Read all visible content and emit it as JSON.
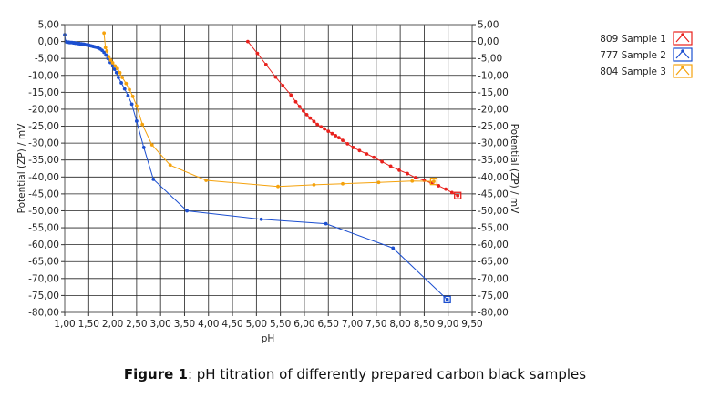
{
  "chart_data": {
    "type": "line",
    "title": "",
    "xlabel": "pH",
    "ylabel": "Potential (ZP) / mV",
    "ylabel_right": "Potential (ZP) / mV",
    "xlim": [
      1.0,
      9.5
    ],
    "ylim": [
      -80,
      5
    ],
    "x_ticks": [
      "1,00",
      "1,50",
      "2,00",
      "2,50",
      "3,00",
      "3,50",
      "4,00",
      "4,50",
      "5,00",
      "5,50",
      "6,00",
      "6,50",
      "7,00",
      "7,50",
      "8,00",
      "8,50",
      "9,00",
      "9,50"
    ],
    "y_ticks": [
      "5,00",
      "0,00",
      "-5,00",
      "-10,00",
      "-15,00",
      "-20,00",
      "-25,00",
      "-30,00",
      "-35,00",
      "-40,00",
      "-45,00",
      "-50,00",
      "-55,00",
      "-60,00",
      "-65,00",
      "-70,00",
      "-75,00",
      "-80,00"
    ],
    "grid": true,
    "legend_position": "top-right",
    "series": [
      {
        "name": "809 Sample 1",
        "color": "#e8201c",
        "points": [
          [
            4.82,
            0.0
          ],
          [
            5.02,
            -3.5
          ],
          [
            5.2,
            -6.8
          ],
          [
            5.4,
            -10.5
          ],
          [
            5.55,
            -13.0
          ],
          [
            5.72,
            -15.8
          ],
          [
            5.82,
            -17.8
          ],
          [
            5.9,
            -19.2
          ],
          [
            5.98,
            -20.5
          ],
          [
            6.05,
            -21.6
          ],
          [
            6.12,
            -22.6
          ],
          [
            6.2,
            -23.6
          ],
          [
            6.27,
            -24.5
          ],
          [
            6.35,
            -25.2
          ],
          [
            6.42,
            -25.8
          ],
          [
            6.5,
            -26.5
          ],
          [
            6.58,
            -27.2
          ],
          [
            6.65,
            -27.8
          ],
          [
            6.72,
            -28.4
          ],
          [
            6.8,
            -29.2
          ],
          [
            6.9,
            -30.2
          ],
          [
            7.02,
            -31.3
          ],
          [
            7.15,
            -32.2
          ],
          [
            7.3,
            -33.2
          ],
          [
            7.45,
            -34.2
          ],
          [
            7.62,
            -35.5
          ],
          [
            7.8,
            -36.8
          ],
          [
            7.98,
            -38.0
          ],
          [
            8.15,
            -39.0
          ],
          [
            8.32,
            -40.2
          ],
          [
            8.5,
            -41.0
          ],
          [
            8.65,
            -41.8
          ],
          [
            8.8,
            -42.6
          ],
          [
            8.95,
            -43.6
          ],
          [
            9.08,
            -44.6
          ],
          [
            9.2,
            -45.5
          ]
        ]
      },
      {
        "name": "777 Sample 2",
        "color": "#1c4fd0",
        "points": [
          [
            1.0,
            2.0
          ],
          [
            1.02,
            0.0
          ],
          [
            1.05,
            -0.2
          ],
          [
            1.08,
            -0.2
          ],
          [
            1.1,
            -0.3
          ],
          [
            1.12,
            -0.3
          ],
          [
            1.15,
            -0.3
          ],
          [
            1.18,
            -0.4
          ],
          [
            1.2,
            -0.4
          ],
          [
            1.22,
            -0.5
          ],
          [
            1.25,
            -0.5
          ],
          [
            1.28,
            -0.6
          ],
          [
            1.3,
            -0.6
          ],
          [
            1.32,
            -0.7
          ],
          [
            1.35,
            -0.7
          ],
          [
            1.38,
            -0.8
          ],
          [
            1.4,
            -0.8
          ],
          [
            1.42,
            -0.9
          ],
          [
            1.45,
            -1.0
          ],
          [
            1.48,
            -1.0
          ],
          [
            1.5,
            -1.1
          ],
          [
            1.52,
            -1.2
          ],
          [
            1.55,
            -1.3
          ],
          [
            1.58,
            -1.4
          ],
          [
            1.6,
            -1.5
          ],
          [
            1.63,
            -1.6
          ],
          [
            1.66,
            -1.7
          ],
          [
            1.7,
            -1.9
          ],
          [
            1.74,
            -2.2
          ],
          [
            1.78,
            -2.6
          ],
          [
            1.82,
            -3.2
          ],
          [
            1.86,
            -4.0
          ],
          [
            1.9,
            -5.0
          ],
          [
            1.95,
            -6.2
          ],
          [
            2.0,
            -7.2
          ],
          [
            2.04,
            -8.2
          ],
          [
            2.08,
            -9.2
          ],
          [
            2.12,
            -10.6
          ],
          [
            2.18,
            -12.2
          ],
          [
            2.25,
            -14.0
          ],
          [
            2.32,
            -16.0
          ],
          [
            2.4,
            -18.5
          ],
          [
            2.5,
            -23.5
          ],
          [
            2.65,
            -31.3
          ],
          [
            2.85,
            -40.7
          ],
          [
            3.55,
            -50.0
          ],
          [
            5.1,
            -52.5
          ],
          [
            6.45,
            -53.8
          ],
          [
            7.85,
            -61.0
          ],
          [
            8.98,
            -76.2
          ]
        ]
      },
      {
        "name": "804 Sample 3",
        "color": "#f5a20c",
        "points": [
          [
            1.82,
            2.5
          ],
          [
            1.85,
            -1.8
          ],
          [
            1.88,
            -2.8
          ],
          [
            1.92,
            -4.5
          ],
          [
            1.96,
            -5.5
          ],
          [
            2.0,
            -6.3
          ],
          [
            2.05,
            -7.2
          ],
          [
            2.1,
            -8.0
          ],
          [
            2.15,
            -9.2
          ],
          [
            2.2,
            -10.6
          ],
          [
            2.28,
            -12.4
          ],
          [
            2.35,
            -14.2
          ],
          [
            2.42,
            -16.2
          ],
          [
            2.5,
            -19.0
          ],
          [
            2.62,
            -24.5
          ],
          [
            2.82,
            -30.5
          ],
          [
            3.2,
            -36.5
          ],
          [
            3.95,
            -41.0
          ],
          [
            5.45,
            -42.8
          ],
          [
            6.2,
            -42.3
          ],
          [
            6.8,
            -42.0
          ],
          [
            7.55,
            -41.6
          ],
          [
            8.25,
            -41.2
          ],
          [
            8.7,
            -41.3
          ]
        ]
      }
    ]
  },
  "caption": {
    "label": "Figure 1",
    "text": ": pH titration of differently prepared carbon black samples"
  }
}
